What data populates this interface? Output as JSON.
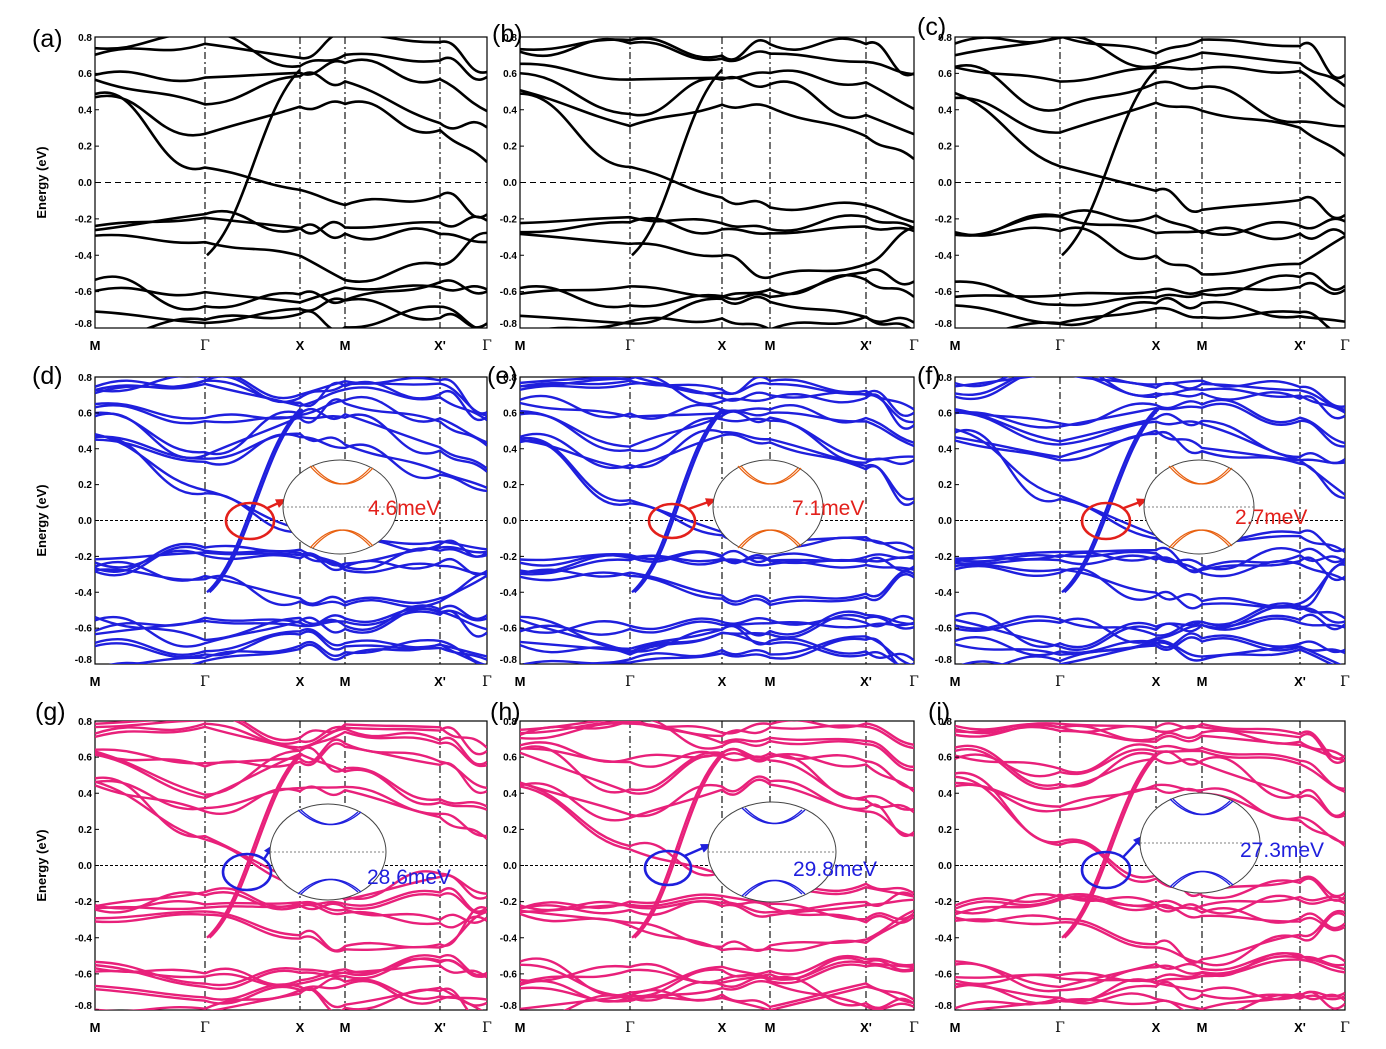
{
  "colors": {
    "row1": "#000000",
    "row2": "#1f1fdd",
    "row3": "#e8207a",
    "inset_red": "#e3201b",
    "inset_orange": "#e8600f",
    "inset_blue": "#1f1fdd"
  },
  "y_axis": {
    "label": "Energy (eV)",
    "ticks": [
      "0.8",
      "0.6",
      "0.4",
      "0.2",
      "0.0",
      "-0.2",
      "-0.4",
      "-0.6",
      "-0.8"
    ]
  },
  "k_path": [
    "M",
    "Γ",
    "X",
    "M",
    "X'",
    "Γ"
  ],
  "chart_data": [
    {
      "panel": "(a)",
      "type": "line",
      "ylim": [
        -0.8,
        0.8
      ],
      "gap": ""
    },
    {
      "panel": "(b)",
      "type": "line",
      "ylim": [
        -0.8,
        0.8
      ],
      "gap": ""
    },
    {
      "panel": "(c)",
      "type": "line",
      "ylim": [
        -0.8,
        0.8
      ],
      "gap": ""
    },
    {
      "panel": "(d)",
      "type": "line",
      "ylim": [
        -0.8,
        0.8
      ],
      "gap": "4.6meV"
    },
    {
      "panel": "(e)",
      "type": "line",
      "ylim": [
        -0.8,
        0.8
      ],
      "gap": "7.1meV"
    },
    {
      "panel": "(f)",
      "type": "line",
      "ylim": [
        -0.8,
        0.8
      ],
      "gap": "2.7meV"
    },
    {
      "panel": "(g)",
      "type": "line",
      "ylim": [
        -0.8,
        0.8
      ],
      "gap": "28.6meV"
    },
    {
      "panel": "(h)",
      "type": "line",
      "ylim": [
        -0.8,
        0.8
      ],
      "gap": "29.8meV"
    },
    {
      "panel": "(i)",
      "type": "line",
      "ylim": [
        -0.8,
        0.8
      ],
      "gap": "27.3meV"
    }
  ]
}
